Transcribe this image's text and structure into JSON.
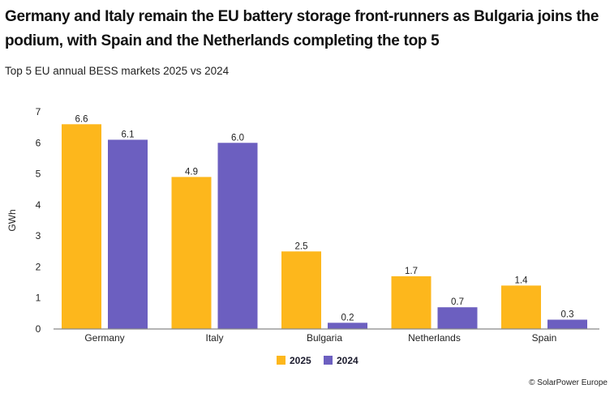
{
  "chart_data": {
    "type": "bar",
    "title": "Germany and Italy remain the EU battery storage front-runners as Bulgaria joins the podium, with Spain and the Netherlands completing the top 5",
    "subtitle": "Top 5 EU annual BESS markets 2025 vs 2024",
    "xlabel": "",
    "ylabel": "GWh",
    "ylim": [
      0,
      7
    ],
    "yticks": [
      0,
      1,
      2,
      3,
      4,
      5,
      6,
      7
    ],
    "grid": false,
    "legend_position": "bottom-center",
    "categories": [
      "Germany",
      "Italy",
      "Bulgaria",
      "Netherlands",
      "Spain"
    ],
    "series": [
      {
        "name": "2025",
        "color": "#FDB71C",
        "values": [
          6.6,
          4.9,
          2.5,
          1.7,
          1.4
        ]
      },
      {
        "name": "2024",
        "color": "#6C5FC0",
        "values": [
          6.1,
          6.0,
          0.2,
          0.7,
          0.3
        ]
      }
    ]
  },
  "credit": "© SolarPower Europe",
  "colors": {
    "axis": "#888888"
  }
}
